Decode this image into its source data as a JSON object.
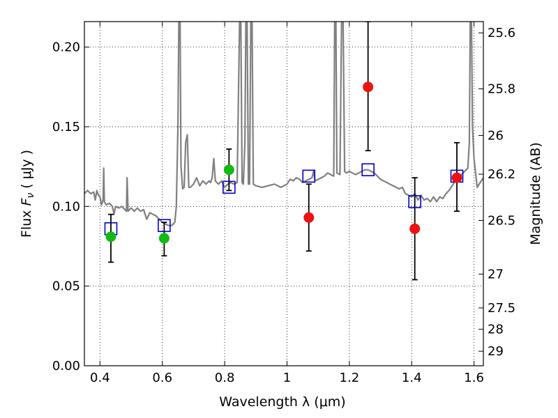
{
  "chart_data": {
    "type": "scatter",
    "title": "",
    "xlabel": "Wavelength  λ (μm)",
    "ylabel": {
      "prefix": "Flux  ",
      "symbol": "F",
      "subscript": "ν",
      "unit": "  ( μJy )"
    },
    "ylabel_right": "Magnitude (AB)",
    "xlim": [
      0.35,
      1.63
    ],
    "ylim": [
      0.0,
      0.216
    ],
    "grid": true,
    "xticks": [
      {
        "value": 0.4,
        "label": "0.4"
      },
      {
        "value": 0.6,
        "label": "0.6"
      },
      {
        "value": 0.8,
        "label": "0.8"
      },
      {
        "value": 1.0,
        "label": "1"
      },
      {
        "value": 1.2,
        "label": "1.2"
      },
      {
        "value": 1.4,
        "label": "1.4"
      },
      {
        "value": 1.6,
        "label": "1.6"
      }
    ],
    "yticks": [
      {
        "value": 0.0,
        "label": "0.00"
      },
      {
        "value": 0.05,
        "label": "0.05"
      },
      {
        "value": 0.1,
        "label": "0.10"
      },
      {
        "value": 0.15,
        "label": "0.15"
      },
      {
        "value": 0.2,
        "label": "0.20"
      }
    ],
    "mag_ticks": [
      {
        "mag": 25.6,
        "label": "25.6"
      },
      {
        "mag": 25.8,
        "label": "25.8"
      },
      {
        "mag": 26.0,
        "label": "26"
      },
      {
        "mag": 26.2,
        "label": "26.2"
      },
      {
        "mag": 26.5,
        "label": "26.5"
      },
      {
        "mag": 27.0,
        "label": "27"
      },
      {
        "mag": 27.5,
        "label": "27.5"
      },
      {
        "mag": 28.0,
        "label": "28"
      },
      {
        "mag": 29.0,
        "label": "29"
      }
    ],
    "series": [
      {
        "name": "model_spectrum",
        "kind": "line",
        "color": "#808080",
        "points": [
          [
            0.35,
            0.108
          ],
          [
            0.36,
            0.11
          ],
          [
            0.37,
            0.108
          ],
          [
            0.38,
            0.109
          ],
          [
            0.385,
            0.104
          ],
          [
            0.39,
            0.11
          ],
          [
            0.395,
            0.107
          ],
          [
            0.4,
            0.106
          ],
          [
            0.405,
            0.101
          ],
          [
            0.41,
            0.104
          ],
          [
            0.412,
            0.124
          ],
          [
            0.414,
            0.103
          ],
          [
            0.42,
            0.101
          ],
          [
            0.43,
            0.102
          ],
          [
            0.44,
            0.1
          ],
          [
            0.445,
            0.095
          ],
          [
            0.45,
            0.1
          ],
          [
            0.46,
            0.099
          ],
          [
            0.47,
            0.1
          ],
          [
            0.48,
            0.098
          ],
          [
            0.485,
            0.097
          ],
          [
            0.487,
            0.118
          ],
          [
            0.49,
            0.097
          ],
          [
            0.5,
            0.099
          ],
          [
            0.51,
            0.097
          ],
          [
            0.52,
            0.099
          ],
          [
            0.53,
            0.097
          ],
          [
            0.54,
            0.098
          ],
          [
            0.55,
            0.092
          ],
          [
            0.56,
            0.096
          ],
          [
            0.57,
            0.095
          ],
          [
            0.58,
            0.094
          ],
          [
            0.59,
            0.092
          ],
          [
            0.6,
            0.09
          ],
          [
            0.61,
            0.089
          ],
          [
            0.62,
            0.088
          ],
          [
            0.63,
            0.088
          ],
          [
            0.64,
            0.09
          ],
          [
            0.645,
            0.1
          ],
          [
            0.65,
            0.15
          ],
          [
            0.653,
            0.216
          ],
          [
            0.657,
            0.216
          ],
          [
            0.66,
            0.125
          ],
          [
            0.665,
            0.111
          ],
          [
            0.67,
            0.112
          ],
          [
            0.675,
            0.14
          ],
          [
            0.68,
            0.145
          ],
          [
            0.685,
            0.112
          ],
          [
            0.69,
            0.112
          ],
          [
            0.7,
            0.114
          ],
          [
            0.71,
            0.118
          ],
          [
            0.72,
            0.113
          ],
          [
            0.73,
            0.116
          ],
          [
            0.74,
            0.114
          ],
          [
            0.75,
            0.116
          ],
          [
            0.755,
            0.115
          ],
          [
            0.76,
            0.118
          ],
          [
            0.765,
            0.13
          ],
          [
            0.77,
            0.116
          ],
          [
            0.78,
            0.114
          ],
          [
            0.79,
            0.116
          ],
          [
            0.8,
            0.112
          ],
          [
            0.81,
            0.114
          ],
          [
            0.82,
            0.115
          ],
          [
            0.83,
            0.114
          ],
          [
            0.84,
            0.115
          ],
          [
            0.848,
            0.216
          ],
          [
            0.852,
            0.216
          ],
          [
            0.856,
            0.115
          ],
          [
            0.86,
            0.114
          ],
          [
            0.865,
            0.14
          ],
          [
            0.868,
            0.216
          ],
          [
            0.872,
            0.216
          ],
          [
            0.876,
            0.114
          ],
          [
            0.88,
            0.114
          ],
          [
            0.884,
            0.216
          ],
          [
            0.888,
            0.216
          ],
          [
            0.892,
            0.114
          ],
          [
            0.9,
            0.113
          ],
          [
            0.92,
            0.112
          ],
          [
            0.94,
            0.113
          ],
          [
            0.96,
            0.114
          ],
          [
            0.98,
            0.112
          ],
          [
            1.0,
            0.114
          ],
          [
            1.01,
            0.117
          ],
          [
            1.02,
            0.116
          ],
          [
            1.03,
            0.118
          ],
          [
            1.04,
            0.117
          ],
          [
            1.05,
            0.115
          ],
          [
            1.06,
            0.116
          ],
          [
            1.07,
            0.117
          ],
          [
            1.08,
            0.118
          ],
          [
            1.085,
            0.122
          ],
          [
            1.09,
            0.116
          ],
          [
            1.1,
            0.117
          ],
          [
            1.11,
            0.118
          ],
          [
            1.12,
            0.119
          ],
          [
            1.13,
            0.121
          ],
          [
            1.14,
            0.12
          ],
          [
            1.15,
            0.119
          ],
          [
            1.153,
            0.216
          ],
          [
            1.157,
            0.216
          ],
          [
            1.16,
            0.121
          ],
          [
            1.17,
            0.12
          ],
          [
            1.175,
            0.216
          ],
          [
            1.18,
            0.216
          ],
          [
            1.185,
            0.122
          ],
          [
            1.19,
            0.121
          ],
          [
            1.2,
            0.122
          ],
          [
            1.21,
            0.121
          ],
          [
            1.22,
            0.12
          ],
          [
            1.23,
            0.121
          ],
          [
            1.24,
            0.122
          ],
          [
            1.25,
            0.123
          ],
          [
            1.26,
            0.123
          ],
          [
            1.27,
            0.122
          ],
          [
            1.28,
            0.121
          ],
          [
            1.29,
            0.119
          ],
          [
            1.3,
            0.117
          ],
          [
            1.31,
            0.116
          ],
          [
            1.32,
            0.115
          ],
          [
            1.33,
            0.114
          ],
          [
            1.34,
            0.113
          ],
          [
            1.35,
            0.112
          ],
          [
            1.36,
            0.111
          ],
          [
            1.37,
            0.112
          ],
          [
            1.38,
            0.108
          ],
          [
            1.39,
            0.107
          ],
          [
            1.4,
            0.106
          ],
          [
            1.41,
            0.108
          ],
          [
            1.42,
            0.104
          ],
          [
            1.43,
            0.107
          ],
          [
            1.44,
            0.104
          ],
          [
            1.45,
            0.105
          ],
          [
            1.46,
            0.103
          ],
          [
            1.47,
            0.106
          ],
          [
            1.48,
            0.103
          ],
          [
            1.49,
            0.106
          ],
          [
            1.5,
            0.105
          ],
          [
            1.51,
            0.108
          ],
          [
            1.52,
            0.11
          ],
          [
            1.53,
            0.113
          ],
          [
            1.54,
            0.116
          ],
          [
            1.55,
            0.118
          ],
          [
            1.56,
            0.12
          ],
          [
            1.57,
            0.122
          ],
          [
            1.58,
            0.124
          ],
          [
            1.585,
            0.14
          ],
          [
            1.588,
            0.216
          ],
          [
            1.592,
            0.216
          ],
          [
            1.595,
            0.15
          ],
          [
            1.6,
            0.13
          ],
          [
            1.61,
            0.112
          ],
          [
            1.62,
            0.115
          ],
          [
            1.63,
            0.118
          ]
        ]
      },
      {
        "name": "model_photometry",
        "kind": "markers",
        "marker": "open-square",
        "color": "#0000cc",
        "points": [
          {
            "x": 0.435,
            "y": 0.086
          },
          {
            "x": 0.606,
            "y": 0.088
          },
          {
            "x": 0.814,
            "y": 0.112
          },
          {
            "x": 1.07,
            "y": 0.119
          },
          {
            "x": 1.26,
            "y": 0.123
          },
          {
            "x": 1.41,
            "y": 0.103
          },
          {
            "x": 1.545,
            "y": 0.119
          }
        ]
      },
      {
        "name": "observed_optical",
        "kind": "markers",
        "marker": "filled-circle",
        "color": "#11bb11",
        "points": [
          {
            "x": 0.435,
            "y": 0.081,
            "err_lo": 0.016,
            "err_hi": 0.014
          },
          {
            "x": 0.606,
            "y": 0.08,
            "err_lo": 0.011,
            "err_hi": 0.01
          },
          {
            "x": 0.814,
            "y": 0.123,
            "err_lo": 0.013,
            "err_hi": 0.013
          }
        ]
      },
      {
        "name": "observed_nir",
        "kind": "markers",
        "marker": "filled-circle",
        "color": "#ee1111",
        "points": [
          {
            "x": 1.07,
            "y": 0.093,
            "err_lo": 0.021,
            "err_hi": 0.021
          },
          {
            "x": 1.26,
            "y": 0.175,
            "err_lo": 0.04,
            "err_hi": 0.041
          },
          {
            "x": 1.41,
            "y": 0.086,
            "err_lo": 0.032,
            "err_hi": 0.032
          },
          {
            "x": 1.545,
            "y": 0.118,
            "err_lo": 0.021,
            "err_hi": 0.022
          }
        ]
      }
    ]
  }
}
